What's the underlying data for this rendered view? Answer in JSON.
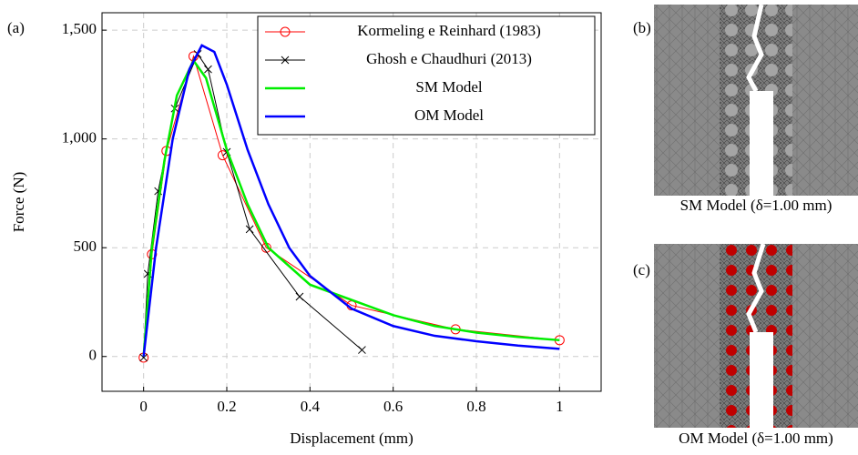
{
  "chart_data": {
    "type": "line",
    "panel_label": "(a)",
    "xlabel": "Displacement (mm)",
    "ylabel": "Force (N)",
    "xlim": [
      -0.1,
      1.1
    ],
    "ylim": [
      -160,
      1580
    ],
    "xticks": [
      0,
      0.2,
      0.4,
      0.6,
      0.8,
      1
    ],
    "yticks": [
      0,
      500,
      {
        "value": 1000,
        "label": "1,000"
      },
      {
        "value": 1500,
        "label": "1,500"
      }
    ],
    "grid": true,
    "legend": "top-right",
    "series": [
      {
        "name": "Kormeling e Reinhard (1983)",
        "color": "#ff0000",
        "marker": "circle",
        "x": [
          0,
          0.02,
          0.055,
          0.12,
          0.19,
          0.295,
          0.5,
          0.75,
          1.0
        ],
        "values": [
          -5,
          470,
          945,
          1380,
          925,
          500,
          235,
          125,
          75
        ]
      },
      {
        "name": "Ghosh e Chaudhuri (2013)",
        "color": "#000000",
        "marker": "x",
        "x": [
          0,
          0.01,
          0.035,
          0.075,
          0.13,
          0.155,
          0.2,
          0.255,
          0.375,
          0.525
        ],
        "values": [
          -5,
          380,
          760,
          1140,
          1390,
          1320,
          940,
          585,
          275,
          30
        ]
      },
      {
        "name": "SM Model",
        "color": "#00ee00",
        "marker": "none",
        "x": [
          0,
          0.02,
          0.05,
          0.08,
          0.12,
          0.15,
          0.2,
          0.25,
          0.3,
          0.4,
          0.5,
          0.6,
          0.7,
          0.8,
          0.9,
          1.0
        ],
        "values": [
          0,
          500,
          900,
          1200,
          1360,
          1280,
          950,
          700,
          500,
          330,
          260,
          190,
          140,
          110,
          90,
          75
        ]
      },
      {
        "name": "OM Model",
        "color": "#0000ff",
        "marker": "none",
        "x": [
          0,
          0.03,
          0.07,
          0.11,
          0.14,
          0.17,
          0.2,
          0.25,
          0.3,
          0.35,
          0.4,
          0.5,
          0.6,
          0.7,
          0.8,
          0.9,
          1.0
        ],
        "values": [
          0,
          500,
          1000,
          1320,
          1430,
          1400,
          1250,
          950,
          700,
          500,
          370,
          220,
          140,
          95,
          70,
          50,
          35
        ]
      }
    ]
  },
  "panels": [
    {
      "label": "(b)",
      "caption": "SM Model (δ=1.00 mm)"
    },
    {
      "label": "(c)",
      "caption": "OM Model (δ=1.00 mm)"
    }
  ]
}
